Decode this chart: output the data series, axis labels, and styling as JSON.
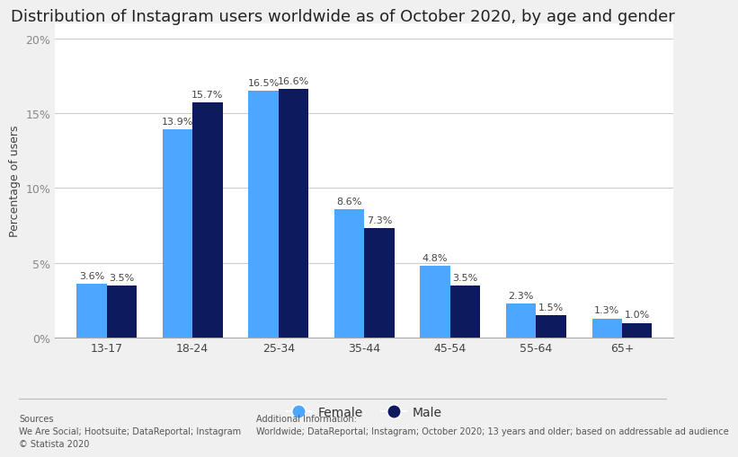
{
  "title": "Distribution of Instagram users worldwide as of October 2020, by age and gender",
  "categories": [
    "13-17",
    "18-24",
    "25-34",
    "35-44",
    "45-54",
    "55-64",
    "65+"
  ],
  "female_values": [
    3.6,
    13.9,
    16.5,
    8.6,
    4.8,
    2.3,
    1.3
  ],
  "male_values": [
    3.5,
    15.7,
    16.6,
    7.3,
    3.5,
    1.5,
    1.0
  ],
  "female_color": "#4da6ff",
  "male_color": "#0d1b5e",
  "ylabel": "Percentage of users",
  "yticks": [
    0,
    5,
    10,
    15,
    20
  ],
  "ytick_labels": [
    "0%",
    "5%",
    "10%",
    "15%",
    "20%"
  ],
  "ylim": [
    0,
    21
  ],
  "background_color": "#f0f0f0",
  "plot_bg_color": "#ffffff",
  "bar_width": 0.35,
  "legend_labels": [
    "Female",
    "Male"
  ],
  "sources_text": "Sources\nWe Are Social; Hootsuite; DataReportal; Instagram\n© Statista 2020",
  "additional_text": "Additional Information:\nWorldwide; DataReportal; Instagram; October 2020; 13 years and older; based on addressable ad audience",
  "title_fontsize": 13,
  "label_fontsize": 9,
  "tick_fontsize": 9,
  "bar_label_fontsize": 8
}
